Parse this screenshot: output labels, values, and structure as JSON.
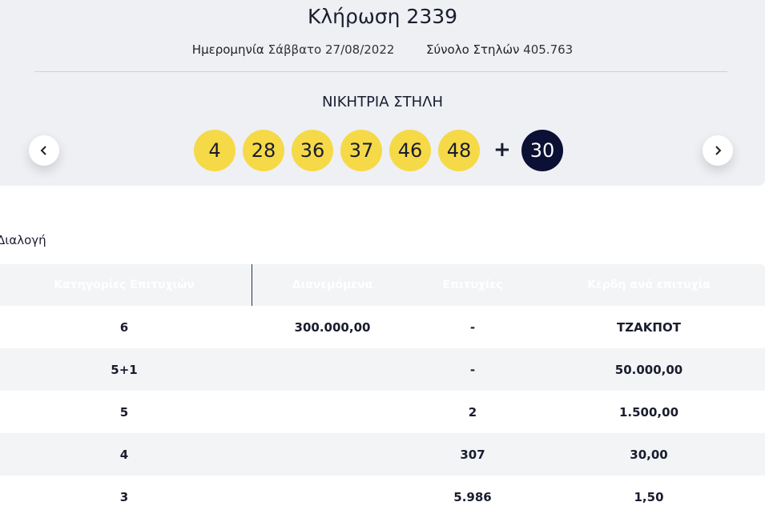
{
  "header": {
    "title": "Κλήρωση 2339",
    "date_label": "Ημερομηνία",
    "date": "Σάββατο 27/08/2022",
    "total_label": "Σύνολο Στηλών",
    "total": "405.763"
  },
  "winning": {
    "title": "ΝΙΚΗΤΡΙΑ ΣΤΗΛΗ",
    "numbers": [
      "4",
      "28",
      "36",
      "37",
      "46",
      "48"
    ],
    "plus": "+",
    "bonus": "30"
  },
  "section": "Διαλογή",
  "table": {
    "columns": [
      "Κατηγορίες Επιτυχιών",
      "Διανεμόμενα",
      "Επιτυχίες",
      "Κέρδη ανά επιτυχία"
    ],
    "rows": [
      [
        "6",
        "300.000,00",
        "-",
        "ΤΖΑΚΠΟΤ"
      ],
      [
        "5+1",
        "",
        "-",
        "50.000,00"
      ],
      [
        "5",
        "",
        "2",
        "1.500,00"
      ],
      [
        "4",
        "",
        "307",
        "30,00"
      ],
      [
        "3",
        "",
        "5.986",
        "1,50"
      ]
    ]
  }
}
